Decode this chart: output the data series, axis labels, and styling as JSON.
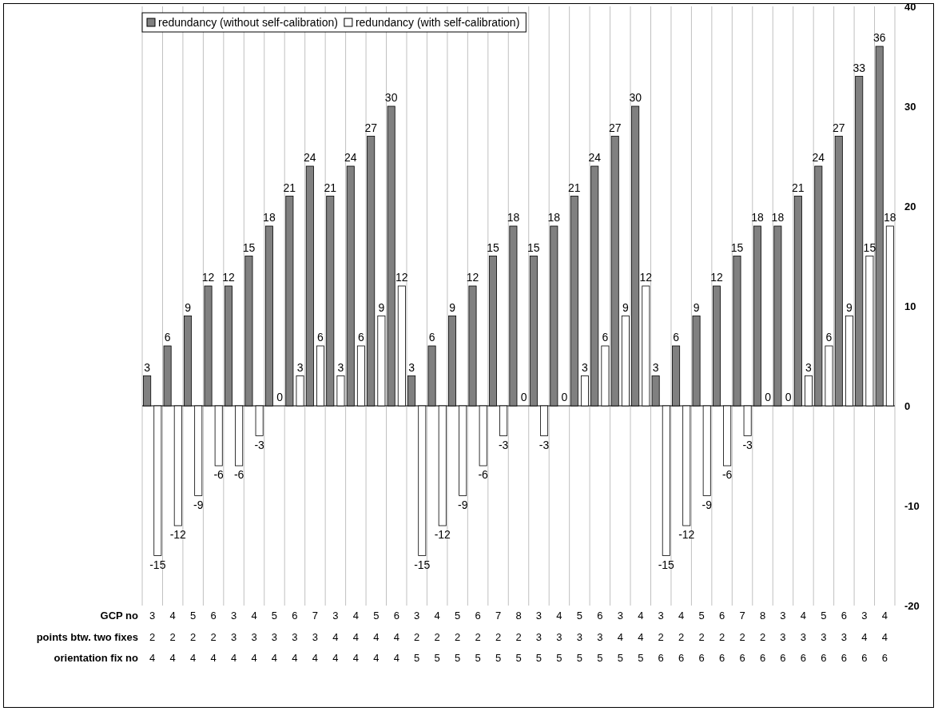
{
  "chart_data": {
    "type": "bar",
    "categories": [
      "3\n2\n4",
      "4\n2\n4",
      "5\n2\n4",
      "6\n2\n4",
      "3\n3\n4",
      "4\n3\n4",
      "5\n3\n4",
      "6\n3\n4",
      "7\n3\n4",
      "3\n4\n4",
      "4\n4\n4",
      "5\n4\n4",
      "6\n4\n4",
      "3\n2\n5",
      "4\n2\n5",
      "5\n2\n5",
      "6\n2\n5",
      "7\n2\n5",
      "8\n2\n5",
      "3\n3\n5",
      "4\n3\n5",
      "5\n3\n5",
      "6\n3\n5",
      "3\n4\n5",
      "4\n4\n5",
      "3\n2\n6",
      "4\n2\n6",
      "5\n2\n6",
      "6\n2\n6",
      "7\n2\n6",
      "8\n2\n6",
      "3\n3\n6",
      "4\n3\n6",
      "5\n3\n6",
      "6\n3\n6",
      "3\n4\n6",
      "4\n4\n6"
    ],
    "xlabel": "GCP no\npoints btw. two fixes\norientation fix no",
    "series": [
      {
        "name": "redundancy (without self-calibration)",
        "color": "#808080",
        "values": [
          3,
          6,
          9,
          12,
          12,
          15,
          18,
          21,
          24,
          21,
          24,
          27,
          30,
          3,
          6,
          9,
          12,
          15,
          18,
          15,
          18,
          21,
          24,
          27,
          30,
          3,
          6,
          9,
          12,
          15,
          18,
          18,
          21,
          24,
          27,
          33,
          36
        ]
      },
      {
        "name": "redundancy (with self-calibration)",
        "color": "#ffffff",
        "values": [
          -15,
          -12,
          -9,
          -6,
          -6,
          -3,
          0,
          3,
          6,
          3,
          6,
          9,
          12,
          -15,
          -12,
          -9,
          -6,
          -3,
          0,
          -3,
          0,
          3,
          6,
          9,
          12,
          -15,
          -12,
          -9,
          -6,
          -3,
          0,
          0,
          3,
          6,
          9,
          15,
          18
        ]
      }
    ],
    "ylim": [
      -20,
      40
    ],
    "yticks": [
      -20,
      -10,
      0,
      10,
      20,
      30,
      40
    ],
    "grid": "x",
    "legend": "top left",
    "data_labels": true
  }
}
